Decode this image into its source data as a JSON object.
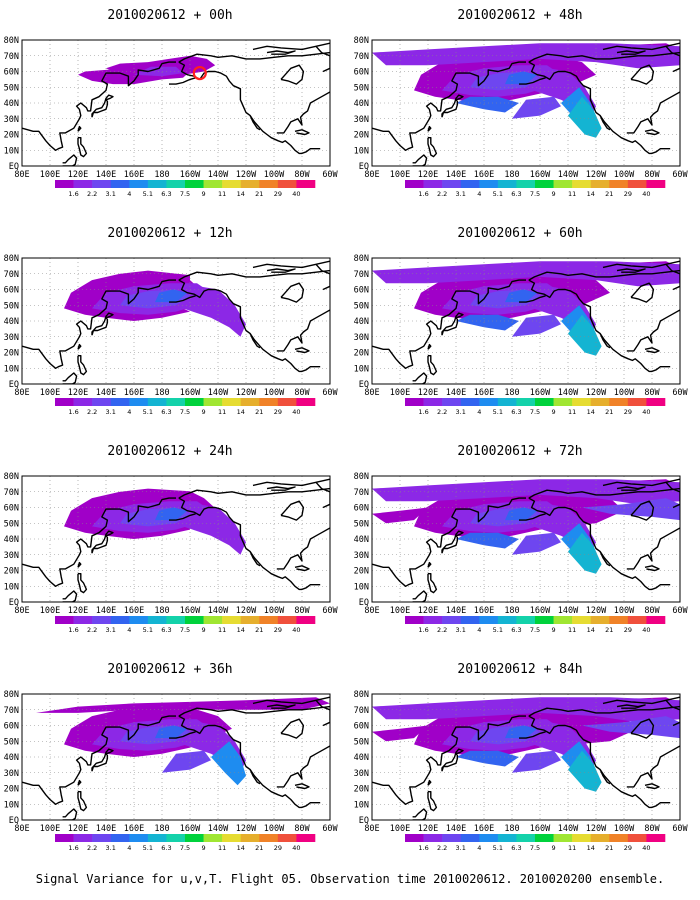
{
  "page": {
    "caption": "Signal Variance for u,v,T. Flight 05. Observation time 2010020612. 2010020200 ensemble."
  },
  "colorbar": {
    "labels": [
      "1.6",
      "2.2",
      "3.1",
      "4",
      "5.1",
      "6.3",
      "7.5",
      "9",
      "11",
      "14",
      "21",
      "29",
      "40"
    ],
    "colors": [
      "#a000c8",
      "#8c28e6",
      "#6e46f0",
      "#3264f0",
      "#1e8cf0",
      "#14b4d2",
      "#14d2aa",
      "#00d23c",
      "#a0e632",
      "#e6dc32",
      "#e6af2d",
      "#f08228",
      "#f0503c",
      "#f00082"
    ]
  },
  "map": {
    "lon_labels": [
      "80E",
      "100E",
      "120E",
      "140E",
      "160E",
      "180",
      "160W",
      "140W",
      "120W",
      "100W",
      "80W",
      "60W"
    ],
    "lat_labels": [
      "EQ",
      "10N",
      "20N",
      "30N",
      "40N",
      "50N",
      "60N",
      "70N",
      "80N"
    ],
    "lon_range": [
      80,
      300
    ],
    "lat_range": [
      0,
      80
    ],
    "land_outline_color": "#000000",
    "grid_style": "dotted"
  },
  "panels": [
    {
      "title": "2010020612 + 00h",
      "fc_hour": 0,
      "marker": "red-circle-at-observation"
    },
    {
      "title": "2010020612 + 12h",
      "fc_hour": 12
    },
    {
      "title": "2010020612 + 24h",
      "fc_hour": 24
    },
    {
      "title": "2010020612 + 36h",
      "fc_hour": 36
    },
    {
      "title": "2010020612 + 48h",
      "fc_hour": 48
    },
    {
      "title": "2010020612 + 60h",
      "fc_hour": 60
    },
    {
      "title": "2010020612 + 72h",
      "fc_hour": 72
    },
    {
      "title": "2010020612 + 84h",
      "fc_hour": 84
    }
  ]
}
